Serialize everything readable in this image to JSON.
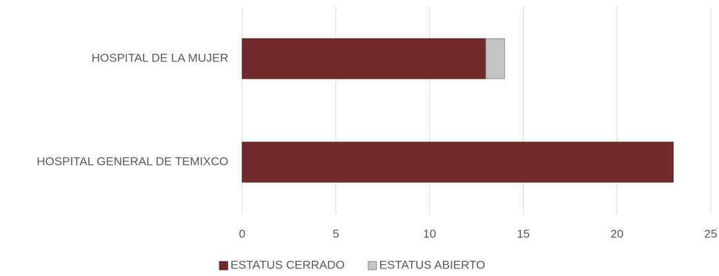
{
  "chart_data": {
    "type": "stacked_barh",
    "categories": [
      "HOSPITAL DE LA MUJER",
      "HOSPITAL GENERAL DE TEMIXCO"
    ],
    "series": [
      {
        "name": "ESTATUS CERRADO",
        "color": "#722b2b",
        "values": [
          13,
          23
        ]
      },
      {
        "name": "ESTATUS ABIERTO",
        "color": "#c4c4c4",
        "values": [
          1,
          0
        ]
      }
    ],
    "xlim": [
      0,
      25
    ],
    "xticks": [
      0,
      5,
      10,
      15,
      20,
      25
    ],
    "grid": true,
    "legend": "bottom"
  }
}
